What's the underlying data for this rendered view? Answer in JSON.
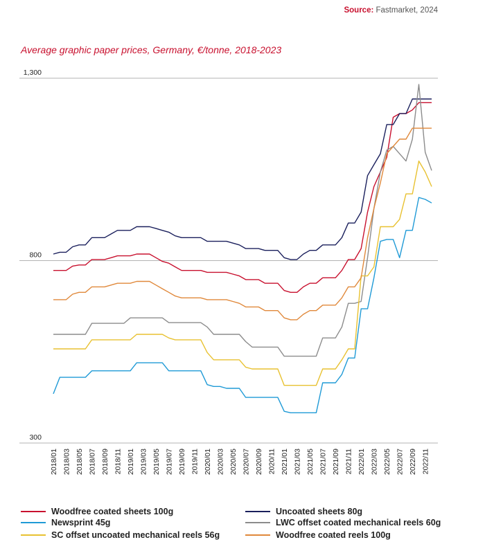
{
  "source": {
    "label": "Source:",
    "text": "Fastmarket, 2024"
  },
  "chart_data": {
    "type": "line",
    "title": "Average graphic paper prices, Germany, €/tonne, 2018-2023",
    "xlabel": "",
    "ylabel": "",
    "ylim": [
      300,
      1300
    ],
    "yticks": [
      "1,300",
      "800",
      "300"
    ],
    "ytick_values": [
      1300,
      800,
      300
    ],
    "grid": true,
    "legend_position": "bottom",
    "x": [
      "2018/01",
      "2018/02",
      "2018/03",
      "2018/04",
      "2018/05",
      "2018/06",
      "2018/07",
      "2018/08",
      "2018/09",
      "2018/10",
      "2018/11",
      "2018/12",
      "2019/01",
      "2019/02",
      "2019/03",
      "2019/04",
      "2019/05",
      "2019/06",
      "2019/07",
      "2019/08",
      "2019/09",
      "2019/10",
      "2019/11",
      "2019/12",
      "2020/01",
      "2020/02",
      "2020/03",
      "2020/04",
      "2020/05",
      "2020/06",
      "2020/07",
      "2020/08",
      "2020/09",
      "2020/10",
      "2020/11",
      "2020/12",
      "2021/01",
      "2021/02",
      "2021/03",
      "2021/04",
      "2021/05",
      "2021/06",
      "2021/07",
      "2021/08",
      "2021/09",
      "2021/10",
      "2021/11",
      "2021/12",
      "2022/01",
      "2022/02",
      "2022/03",
      "2022/04",
      "2022/05",
      "2022/06",
      "2022/07",
      "2022/08",
      "2022/09",
      "2022/10",
      "2022/11",
      "2022/12"
    ],
    "xtick_labels": [
      "2018/01",
      "2018/03",
      "2018/05",
      "2018/07",
      "2018/09",
      "2018/11",
      "2019/01",
      "2019/03",
      "2019/05",
      "2019/07",
      "2019/09",
      "2019/11",
      "2020/01",
      "2020/03",
      "2020/05",
      "2020/07",
      "2020/09",
      "2020/11",
      "2021/01",
      "2021/03",
      "2021/05",
      "2021/07",
      "2021/09",
      "2021/11",
      "2022/01",
      "2022/03",
      "2022/05",
      "2022/07",
      "2022/09",
      "2022/11"
    ],
    "series": [
      {
        "name": "Woodfree coated sheets 100g",
        "color": "#c8102e",
        "values": [
          773,
          773,
          773,
          785,
          788,
          788,
          803,
          803,
          803,
          808,
          813,
          813,
          813,
          818,
          818,
          818,
          808,
          798,
          793,
          783,
          773,
          773,
          773,
          773,
          768,
          768,
          768,
          768,
          763,
          758,
          748,
          748,
          748,
          738,
          738,
          738,
          718,
          713,
          713,
          728,
          738,
          738,
          753,
          753,
          753,
          773,
          803,
          803,
          833,
          933,
          1003,
          1043,
          1083,
          1193,
          1203,
          1203,
          1213,
          1233,
          1233,
          1233
        ]
      },
      {
        "name": "Uncoated sheets 80g",
        "color": "#1a1f5c",
        "values": [
          818,
          823,
          823,
          838,
          843,
          843,
          863,
          863,
          863,
          873,
          883,
          883,
          883,
          893,
          893,
          893,
          888,
          883,
          878,
          868,
          863,
          863,
          863,
          863,
          853,
          853,
          853,
          853,
          848,
          843,
          833,
          833,
          833,
          828,
          828,
          828,
          808,
          803,
          803,
          818,
          828,
          828,
          843,
          843,
          843,
          863,
          903,
          903,
          933,
          1033,
          1063,
          1093,
          1173,
          1173,
          1203,
          1203,
          1243,
          1243,
          1243,
          1243
        ]
      },
      {
        "name": "Newsprint 45g",
        "color": "#1f9ad6",
        "values": [
          435,
          480,
          480,
          480,
          480,
          480,
          498,
          498,
          498,
          498,
          498,
          498,
          498,
          520,
          520,
          520,
          520,
          520,
          498,
          498,
          498,
          498,
          498,
          498,
          460,
          455,
          455,
          450,
          450,
          450,
          425,
          425,
          425,
          425,
          425,
          425,
          387,
          383,
          383,
          383,
          383,
          383,
          465,
          465,
          465,
          488,
          533,
          533,
          668,
          668,
          753,
          853,
          858,
          858,
          808,
          883,
          883,
          973,
          968,
          958
        ]
      },
      {
        "name": "LWC offset coated mechanical reels 60g",
        "color": "#8c8c8c",
        "values": [
          598,
          598,
          598,
          598,
          598,
          598,
          628,
          628,
          628,
          628,
          628,
          628,
          643,
          643,
          643,
          643,
          643,
          643,
          630,
          630,
          630,
          630,
          630,
          630,
          618,
          598,
          598,
          598,
          598,
          598,
          578,
          563,
          563,
          563,
          563,
          563,
          538,
          538,
          538,
          538,
          538,
          538,
          588,
          588,
          588,
          618,
          683,
          683,
          688,
          808,
          943,
          1043,
          1103,
          1113,
          1093,
          1073,
          1133,
          1283,
          1097,
          1047
        ]
      },
      {
        "name": "SC offset uncoated mechanical reels 56g",
        "color": "#e8c130",
        "values": [
          558,
          558,
          558,
          558,
          558,
          558,
          583,
          583,
          583,
          583,
          583,
          583,
          583,
          598,
          598,
          598,
          598,
          598,
          588,
          583,
          583,
          583,
          583,
          583,
          548,
          528,
          528,
          528,
          528,
          528,
          508,
          503,
          503,
          503,
          503,
          503,
          458,
          458,
          458,
          458,
          458,
          458,
          503,
          503,
          503,
          528,
          558,
          558,
          758,
          758,
          783,
          893,
          893,
          893,
          913,
          983,
          983,
          1073,
          1043,
          1003
        ]
      },
      {
        "name": "Woodfree coated reels 100g",
        "color": "#e0883a",
        "values": [
          693,
          693,
          693,
          708,
          713,
          713,
          728,
          728,
          728,
          733,
          738,
          738,
          738,
          743,
          743,
          743,
          733,
          723,
          713,
          703,
          698,
          698,
          698,
          698,
          693,
          693,
          693,
          693,
          688,
          683,
          673,
          673,
          673,
          663,
          663,
          663,
          643,
          638,
          638,
          653,
          663,
          663,
          678,
          678,
          678,
          698,
          728,
          728,
          753,
          863,
          943,
          1013,
          1093,
          1113,
          1133,
          1133,
          1163,
          1163,
          1163,
          1163
        ]
      }
    ]
  }
}
